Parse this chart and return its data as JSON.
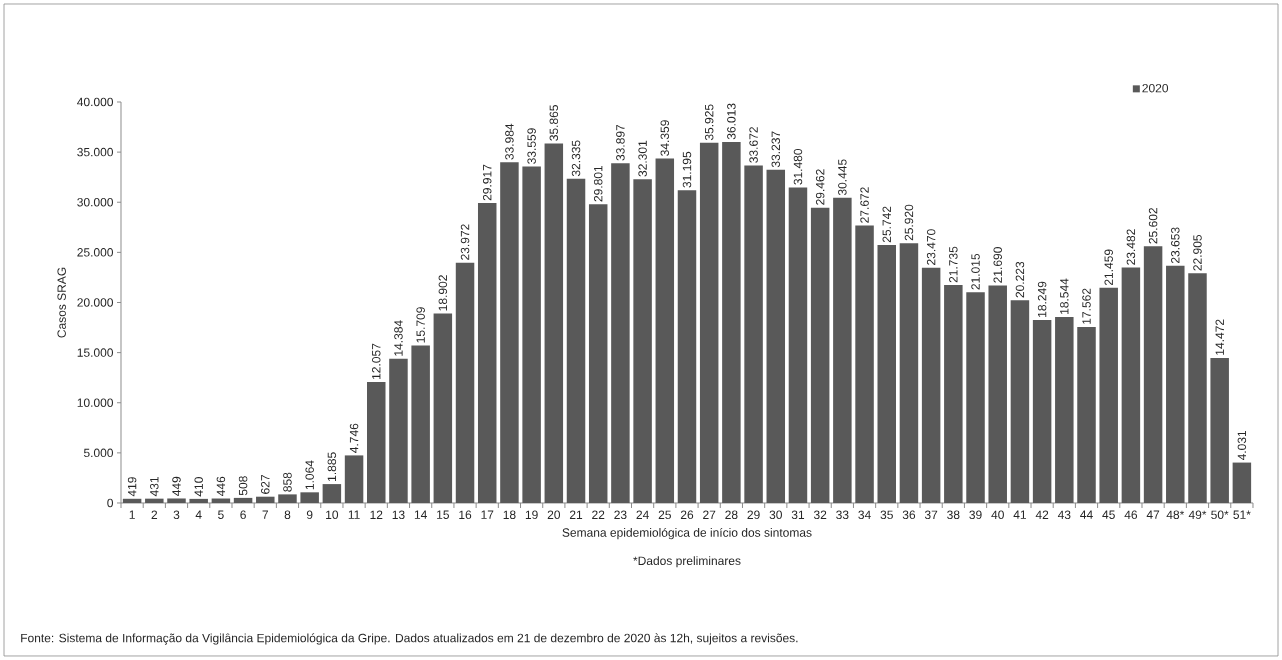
{
  "chart_data": {
    "type": "bar",
    "categories": [
      "1",
      "2",
      "3",
      "4",
      "5",
      "6",
      "7",
      "8",
      "9",
      "10",
      "11",
      "12",
      "13",
      "14",
      "15",
      "16",
      "17",
      "18",
      "19",
      "20",
      "21",
      "22",
      "23",
      "24",
      "25",
      "26",
      "27",
      "28",
      "29",
      "30",
      "31",
      "32",
      "33",
      "34",
      "35",
      "36",
      "37",
      "38",
      "39",
      "40",
      "41",
      "42",
      "43",
      "44",
      "45",
      "46",
      "47",
      "48*",
      "49*",
      "50*",
      "51*"
    ],
    "series": [
      {
        "name": "2020",
        "color": "#595959",
        "values": [
          419,
          431,
          449,
          410,
          446,
          508,
          627,
          858,
          1064,
          1885,
          4746,
          12057,
          14384,
          15709,
          18902,
          23972,
          29917,
          33984,
          33559,
          35865,
          32335,
          29801,
          33897,
          32301,
          34359,
          31195,
          35925,
          36013,
          33672,
          33237,
          31480,
          29462,
          30445,
          27672,
          25742,
          25920,
          23470,
          21735,
          21015,
          21690,
          20223,
          18249,
          18544,
          17562,
          21459,
          23482,
          25602,
          23653,
          22905,
          14472,
          4031
        ],
        "value_labels": [
          "419",
          "431",
          "449",
          "410",
          "446",
          "508",
          "627",
          "858",
          "1.064",
          "1.885",
          "4.746",
          "12.057",
          "14.384",
          "15.709",
          "18.902",
          "23.972",
          "29.917",
          "33.984",
          "33.559",
          "35.865",
          "32.335",
          "29.801",
          "33.897",
          "32.301",
          "34.359",
          "31.195",
          "35.925",
          "36.013",
          "33.672",
          "33.237",
          "31.480",
          "29.462",
          "30.445",
          "27.672",
          "25.742",
          "25.920",
          "23.470",
          "21.735",
          "21.015",
          "21.690",
          "20.223",
          "18.249",
          "18.544",
          "17.562",
          "21.459",
          "23.482",
          "25.602",
          "23.653",
          "22.905",
          "14.472",
          "4.031"
        ]
      }
    ],
    "ylim": [
      0,
      40000
    ],
    "yticks": [
      0,
      {
        "value": 5000,
        "label": "5.000"
      },
      {
        "value": 10000,
        "label": "10.000"
      },
      {
        "value": 15000,
        "label": "15.000"
      },
      {
        "value": 20000,
        "label": "20.000"
      },
      {
        "value": 25000,
        "label": "25.000"
      },
      {
        "value": 30000,
        "label": "30.000"
      },
      {
        "value": 35000,
        "label": "35.000"
      },
      {
        "value": 40000,
        "label": "40.000"
      }
    ],
    "xlabel": "Semana epidemiológica de início dos sintomas",
    "ylabel": "Casos SRAG",
    "legend": "top right",
    "annotations": [
      "*Dados preliminares",
      "Fonte: Sistema de Informação da Vigilância Epidemiológica da Gripe. Dados atualizados em 21 de dezembro de 2020 às 12h, sujeitos a revisões."
    ]
  }
}
